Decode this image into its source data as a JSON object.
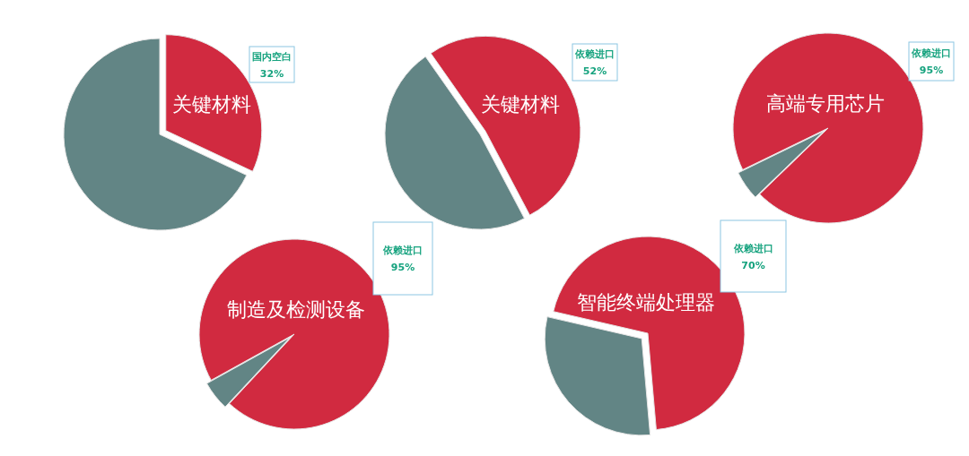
{
  "chart_data": [
    {
      "type": "pie",
      "title": "关键材料",
      "categories": [
        "国内空白",
        null
      ],
      "values": [
        32,
        68
      ],
      "colors": [
        "#d12a40",
        "#628585"
      ],
      "value_labels": [
        "32%",
        null
      ]
    },
    {
      "type": "pie",
      "title": "关键材料",
      "categories": [
        "依赖进口",
        null
      ],
      "values": [
        52,
        48
      ],
      "colors": [
        "#d12a40",
        "#628585"
      ],
      "value_labels": [
        "52%",
        null
      ]
    },
    {
      "type": "pie",
      "title": "高端专用芯片",
      "categories": [
        "依赖进口",
        null
      ],
      "values": [
        95,
        5
      ],
      "colors": [
        "#d12a40",
        "#628585"
      ],
      "value_labels": [
        "95%",
        null
      ]
    },
    {
      "type": "pie",
      "title": "制造及检测设备",
      "categories": [
        "依赖进口",
        null
      ],
      "values": [
        95,
        5
      ],
      "colors": [
        "#d12a40",
        "#628585"
      ],
      "value_labels": [
        "95%",
        null
      ]
    },
    {
      "type": "pie",
      "title": "智能终端处理器",
      "categories": [
        "依赖进口",
        null
      ],
      "values": [
        70,
        30
      ],
      "colors": [
        "#d12a40",
        "#628585"
      ],
      "value_labels": [
        "70%",
        null
      ]
    }
  ]
}
